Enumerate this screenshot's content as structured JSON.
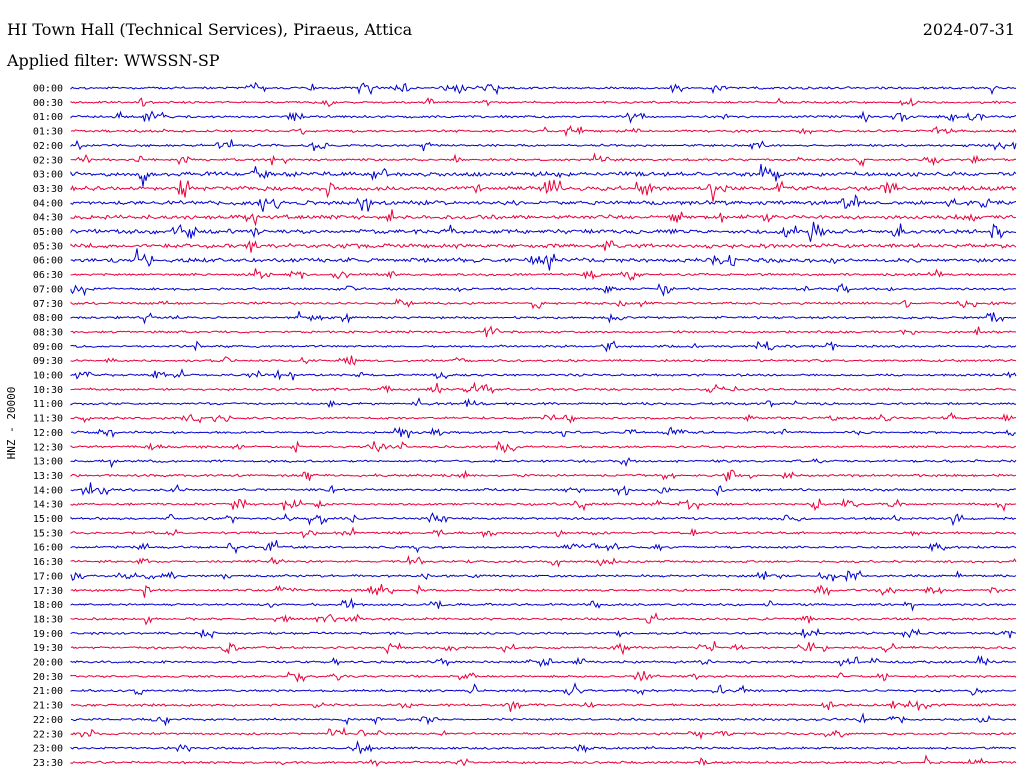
{
  "header": {
    "title": "HI Town Hall (Technical Services), Piraeus, Attica",
    "date": "2024-07-31",
    "filter_prefix": "Applied filter:",
    "filter_name": "WWSSN-SP"
  },
  "chart_data": {
    "type": "line",
    "title": "HI Town Hall (Technical Services), Piraeus, Attica",
    "ylabel": "HNZ - 20000",
    "xlabel": "",
    "row_labels": [
      "00:00",
      "00:30",
      "01:00",
      "01:30",
      "02:00",
      "02:30",
      "03:00",
      "03:30",
      "04:00",
      "04:30",
      "05:00",
      "05:30",
      "06:00",
      "06:30",
      "07:00",
      "07:30",
      "08:00",
      "08:30",
      "09:00",
      "09:30",
      "10:00",
      "10:30",
      "11:00",
      "11:30",
      "12:00",
      "12:30",
      "13:00",
      "13:30",
      "14:00",
      "14:30",
      "15:00",
      "15:30",
      "16:00",
      "16:30",
      "17:00",
      "17:30",
      "18:00",
      "18:30",
      "19:00",
      "19:30",
      "20:00",
      "20:30",
      "21:00",
      "21:30",
      "22:00",
      "22:30",
      "23:00",
      "23:30"
    ],
    "colors": [
      "#0000cc",
      "#e8003a"
    ],
    "grid": false
  }
}
